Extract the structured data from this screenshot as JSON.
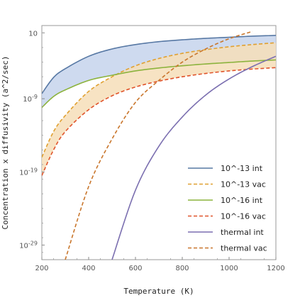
{
  "chart_data": {
    "type": "line",
    "title": "",
    "xlabel": "Temperature (K)",
    "ylabel": "Concentration x diffusivity (a^2/sec)",
    "xlim": [
      200,
      1200
    ],
    "ylim_log10": [
      -31,
      1
    ],
    "y_scale": "log",
    "x_ticks": [
      200,
      400,
      600,
      800,
      1000,
      1200
    ],
    "y_ticks": [
      {
        "label": "10",
        "log10": 0
      },
      {
        "label": "10^-9",
        "log10": -9
      },
      {
        "label": "10^-19",
        "log10": -19
      },
      {
        "label": "10^-29",
        "log10": -29
      }
    ],
    "legend_position": "bottom-right",
    "series": [
      {
        "name": "10^-13 int",
        "color": "#5778a4",
        "dash": false,
        "x": [
          200,
          250,
          300,
          400,
          500,
          600,
          700,
          800,
          900,
          1000,
          1100,
          1200
        ],
        "log10_y": [
          -8.3,
          -6.1,
          -4.9,
          -3.2,
          -2.2,
          -1.6,
          -1.2,
          -0.95,
          -0.75,
          -0.6,
          -0.45,
          -0.35
        ]
      },
      {
        "name": "10^-13 vac",
        "color": "#e0a030",
        "dash": true,
        "x": [
          200,
          250,
          300,
          400,
          500,
          600,
          700,
          800,
          900,
          1000,
          1100,
          1200
        ],
        "log10_y": [
          -17.0,
          -13.5,
          -11.3,
          -8.0,
          -6.0,
          -4.5,
          -3.5,
          -2.8,
          -2.3,
          -1.9,
          -1.6,
          -1.35
        ]
      },
      {
        "name": "10^-16 int",
        "color": "#8cb33d",
        "dash": false,
        "x": [
          200,
          250,
          300,
          400,
          500,
          600,
          700,
          800,
          900,
          1000,
          1100,
          1200
        ],
        "log10_y": [
          -10.2,
          -8.7,
          -7.8,
          -6.5,
          -5.8,
          -5.2,
          -4.8,
          -4.5,
          -4.25,
          -4.05,
          -3.85,
          -3.7
        ]
      },
      {
        "name": "10^-16 vac",
        "color": "#e0532a",
        "dash": true,
        "x": [
          200,
          250,
          300,
          400,
          500,
          600,
          700,
          800,
          900,
          1000,
          1100,
          1200
        ],
        "log10_y": [
          -19.5,
          -16.0,
          -13.5,
          -10.5,
          -8.6,
          -7.4,
          -6.6,
          -6.0,
          -5.55,
          -5.2,
          -4.95,
          -4.75
        ]
      },
      {
        "name": "thermal int",
        "color": "#7b6fb0",
        "dash": false,
        "x": [
          500,
          600,
          700,
          800,
          900,
          1000,
          1100,
          1200
        ],
        "log10_y": [
          -31.0,
          -21.5,
          -15.5,
          -11.5,
          -8.5,
          -6.3,
          -4.6,
          -3.2
        ]
      },
      {
        "name": "thermal vac",
        "color": "#c9762c",
        "dash": true,
        "x": [
          300,
          400,
          500,
          600,
          700,
          800,
          900,
          1000,
          1100
        ],
        "log10_y": [
          -31.0,
          -21.0,
          -14.5,
          -9.5,
          -6.5,
          -4.0,
          -2.2,
          -0.8,
          0.2
        ]
      }
    ],
    "bands": [
      {
        "between": [
          "10^-13 int",
          "10^-16 int"
        ],
        "fill": "#c5d3ec"
      },
      {
        "between": [
          "10^-13 vac",
          "10^-16 vac"
        ],
        "fill": "#f6deb8"
      }
    ]
  }
}
